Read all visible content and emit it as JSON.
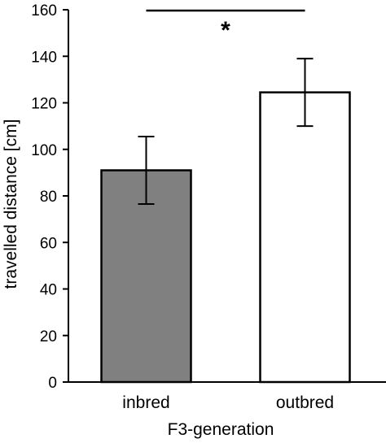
{
  "chart_data": {
    "type": "bar",
    "title": "",
    "xlabel": "F3-generation",
    "ylabel": "travelled distance [cm]",
    "categories": [
      "inbred",
      "outbred"
    ],
    "values": [
      91,
      124.5
    ],
    "error_low": [
      76.5,
      110
    ],
    "error_high": [
      105.5,
      139
    ],
    "bar_colors": [
      "#808080",
      "#ffffff"
    ],
    "bar_edge_color": "#000000",
    "ylim": [
      0,
      160
    ],
    "yticks": [
      0,
      20,
      40,
      60,
      80,
      100,
      120,
      140,
      160
    ],
    "grid": false,
    "legend": "none",
    "annotations": [
      {
        "text": "*",
        "from": "inbred",
        "to": "outbred"
      }
    ]
  }
}
